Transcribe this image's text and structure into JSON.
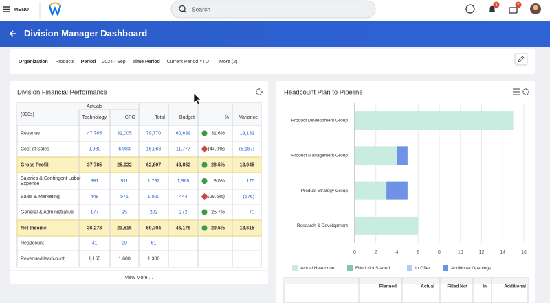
{
  "header": {
    "menu": "MENU",
    "search": "Search",
    "notifications": "3",
    "inbox": "7"
  },
  "title": "Division Manager Dashboard",
  "filters": [
    {
      "label": "Organization",
      "value": "Products"
    },
    {
      "label": "Period",
      "value": "2024 - Sep"
    },
    {
      "label": "Time Period",
      "value": "Current Period YTD"
    }
  ],
  "more": "More (2)",
  "financial": {
    "title": "Division Financial Performance",
    "group_header": "Actuals",
    "columns": [
      "(000s)",
      "Technology",
      "CPG",
      "Total",
      "Budget",
      "%",
      "Variance"
    ],
    "rows": [
      [
        "Revenue",
        "47,765",
        "32,005",
        "79,770",
        "60,639",
        "31.6%",
        "19,132"
      ],
      [
        "Cost of Sales",
        "9,980",
        "6,983",
        "16,963",
        "11,777",
        "(44.0%)",
        "(5,187)"
      ],
      [
        "Gross Profit",
        "37,785",
        "25,022",
        "62,807",
        "48,862",
        "28.5%",
        "13,945"
      ],
      [
        "Salaries & Contingent Labor Expense",
        "881",
        "911",
        "1,792",
        "1,968",
        "9.0%",
        "176"
      ],
      [
        "Sales & Marketing",
        "449",
        "571",
        "1,020",
        "444",
        "(129.6%)",
        "(576)"
      ],
      [
        "General & Administrative",
        "177",
        "25",
        "202",
        "272",
        "25.7%",
        "70"
      ],
      [
        "Net Income",
        "36,278",
        "23,516",
        "59,794",
        "46,178",
        "29.5%",
        "13,615"
      ],
      [
        "Headcount",
        "41",
        "20",
        "61"
      ],
      [
        "Revenue/Headcount",
        "1,165",
        "1,600",
        "1,308"
      ]
    ],
    "footer": "View More ..."
  },
  "chart_data": {
    "type": "bar",
    "orientation": "horizontal",
    "stacked": true,
    "title": "Headcount Plan to Pipeline",
    "categories": [
      "Product Development Group",
      "Product Management Group",
      "Product Strategy Group",
      "Research & Development"
    ],
    "series": [
      {
        "name": "Actual Headcount",
        "color": "#c8ecdf",
        "values": [
          15,
          4,
          3,
          6
        ]
      },
      {
        "name": "Filled Not Started",
        "color": "#7fcaa5",
        "values": [
          0,
          0,
          0,
          0
        ]
      },
      {
        "name": "In Offer",
        "color": "#b3cbf3",
        "values": [
          0,
          0,
          0,
          0
        ]
      },
      {
        "name": "Additional Openings",
        "color": "#6e92e6",
        "values": [
          0,
          1,
          2,
          0
        ]
      }
    ],
    "xlim": [
      0,
      16
    ],
    "xticks": [
      0,
      2,
      4,
      6,
      8,
      10,
      12,
      14,
      16
    ],
    "grid": true
  },
  "pipeline_table": {
    "columns": [
      "Planned",
      "Actual",
      "Filled Not",
      "In",
      "Additional"
    ]
  }
}
